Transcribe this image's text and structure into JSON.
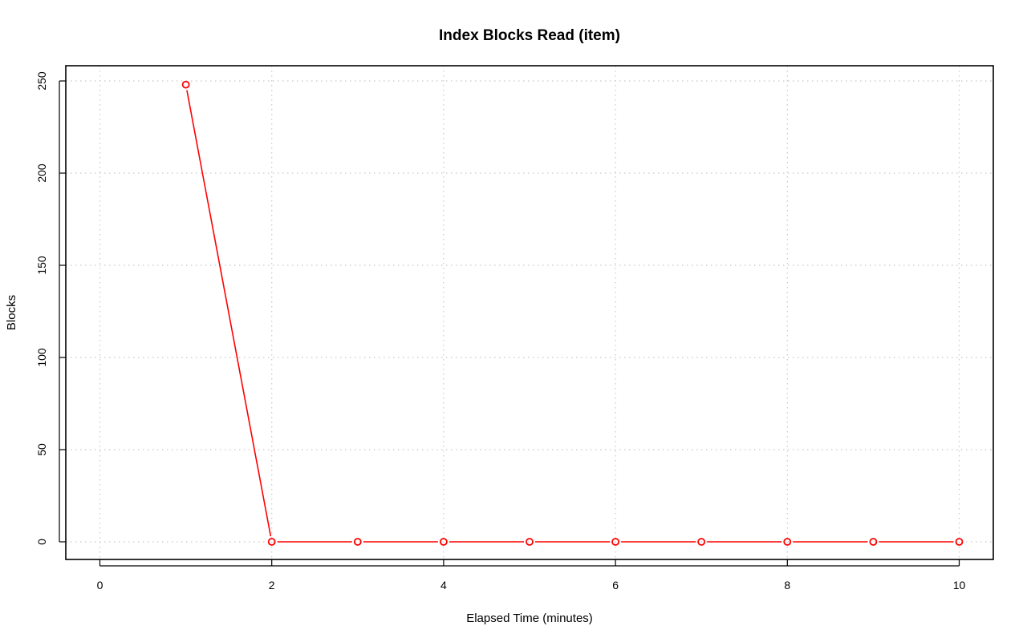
{
  "chart_data": {
    "type": "line",
    "title": "Index Blocks Read (item)",
    "xlabel": "Elapsed Time (minutes)",
    "ylabel": "Blocks",
    "xlim": [
      0,
      10
    ],
    "ylim": [
      0,
      250
    ],
    "xticks": [
      "0",
      "2",
      "4",
      "6",
      "8",
      "10"
    ],
    "yticks": [
      "0",
      "50",
      "100",
      "150",
      "200",
      "250"
    ],
    "grid": true,
    "series_color": "#ff0000",
    "series": [
      {
        "x": [
          1,
          2,
          3,
          4,
          5,
          6,
          7,
          8,
          9,
          10
        ],
        "values": [
          248,
          0,
          0,
          0,
          0,
          0,
          0,
          0,
          0,
          0
        ]
      }
    ]
  }
}
